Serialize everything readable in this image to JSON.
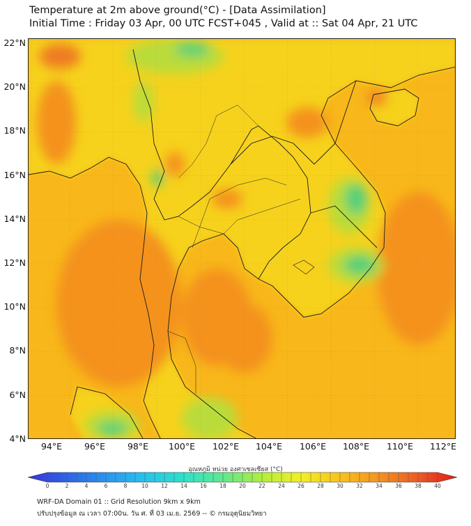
{
  "header": {
    "title_line1": "Temperature at 2m above ground(°C) - [Data Assimilation]",
    "title_line2": "Initial Time : Friday 03 Apr, 00 UTC FCST+045 , Valid at :: Sat 04 Apr, 21 UTC"
  },
  "map": {
    "latitude_labels": [
      "22°N",
      "20°N",
      "18°N",
      "16°N",
      "14°N",
      "12°N",
      "10°N",
      "8°N",
      "6°N",
      "4°N"
    ],
    "longitude_labels": [
      "94°E",
      "96°E",
      "98°E",
      "100°E",
      "102°E",
      "104°E",
      "106°E",
      "108°E",
      "110°E",
      "112°E"
    ],
    "colors": {
      "ocean": "#f8b71a",
      "land": "#f6d21c",
      "warm": "#f4921f",
      "hot": "#ef7b22",
      "cool": "#b9dc3a",
      "cooler": "#54cf7a",
      "border": "#1a1a1a"
    }
  },
  "colorbar": {
    "title": "อุณหภูมิ หน่วย องศาเซลเซียส (°C)",
    "labels": [
      "0",
      "2",
      "4",
      "6",
      "8",
      "10",
      "12",
      "14",
      "16",
      "18",
      "20",
      "22",
      "24",
      "26",
      "28",
      "30",
      "32",
      "34",
      "36",
      "38",
      "40"
    ],
    "stops": [
      "#3a35d6",
      "#2d63e6",
      "#2a94ef",
      "#27c3ee",
      "#2ee2c9",
      "#5fe88e",
      "#b2ee3c",
      "#f4ef24",
      "#f8c21b",
      "#f39220",
      "#ec5b24",
      "#e31a1c"
    ]
  },
  "footer": {
    "line1": "WRF-DA Domain 01 :: Grid Resolution 9km x 9km",
    "line2": "ปรับปรุงข้อมูล ณ เวลา 07:00น. วัน ศ. ที่ 03 เม.ย. 2569 -- © กรมอุตุนิยมวิทยา"
  }
}
